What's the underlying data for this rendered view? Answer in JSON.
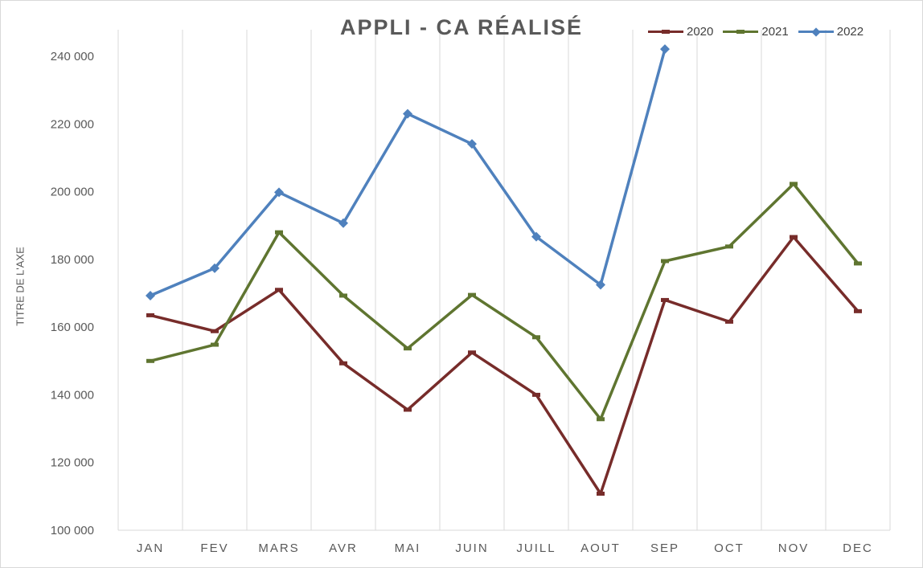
{
  "chart_data": {
    "type": "line",
    "title": "APPLI - CA RÉALISÉ",
    "ylabel": "TITRE DE L'AXE",
    "xlabel": "",
    "categories": [
      "JAN",
      "FEV",
      "MARS",
      "AVR",
      "MAI",
      "JUIN",
      "JUILL",
      "AOUT",
      "SEP",
      "OCT",
      "NOV",
      "DEC"
    ],
    "ylim": [
      100000,
      240000
    ],
    "yticks": [
      100000,
      120000,
      140000,
      160000,
      180000,
      200000,
      220000,
      240000
    ],
    "ytick_labels": [
      "100 000",
      "120 000",
      "140 000",
      "160 000",
      "180 000",
      "200 000",
      "220 000",
      "240 000"
    ],
    "grid": "vertical",
    "legend_position": "top-right",
    "series": [
      {
        "name": "2020",
        "color": "#772c2a",
        "marker": "dash",
        "values": [
          163500,
          158800,
          171000,
          149300,
          135600,
          152500,
          140000,
          110800,
          168000,
          161600,
          186600,
          164700
        ]
      },
      {
        "name": "2021",
        "color": "#5f7530",
        "marker": "dash",
        "values": [
          150000,
          154800,
          188000,
          169300,
          153700,
          169500,
          157000,
          132800,
          179500,
          183800,
          202300,
          178800
        ]
      },
      {
        "name": "2022",
        "color": "#4f81bd",
        "marker": "diamond",
        "values": [
          169300,
          177400,
          199800,
          190700,
          223000,
          214100,
          186700,
          172500,
          242100,
          null,
          null,
          null
        ]
      }
    ]
  }
}
